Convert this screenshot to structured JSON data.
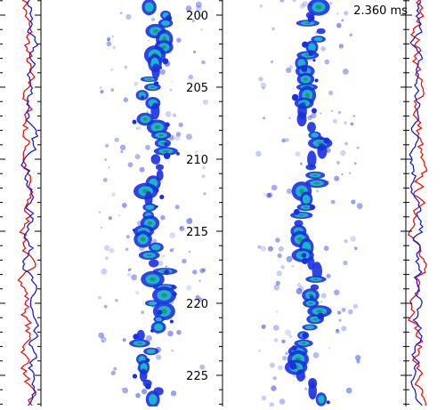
{
  "time_label": "2.360 ms",
  "axis": {
    "ticks": [
      200,
      205,
      210,
      215,
      220,
      225
    ]
  },
  "colors": {
    "trace_red": "#e8140f",
    "trace_blue": "#1c1cd6",
    "blob_blue": "#1a2fe0",
    "blob_cyan": "#19b6c8",
    "blob_green": "#2f8f6f"
  }
}
